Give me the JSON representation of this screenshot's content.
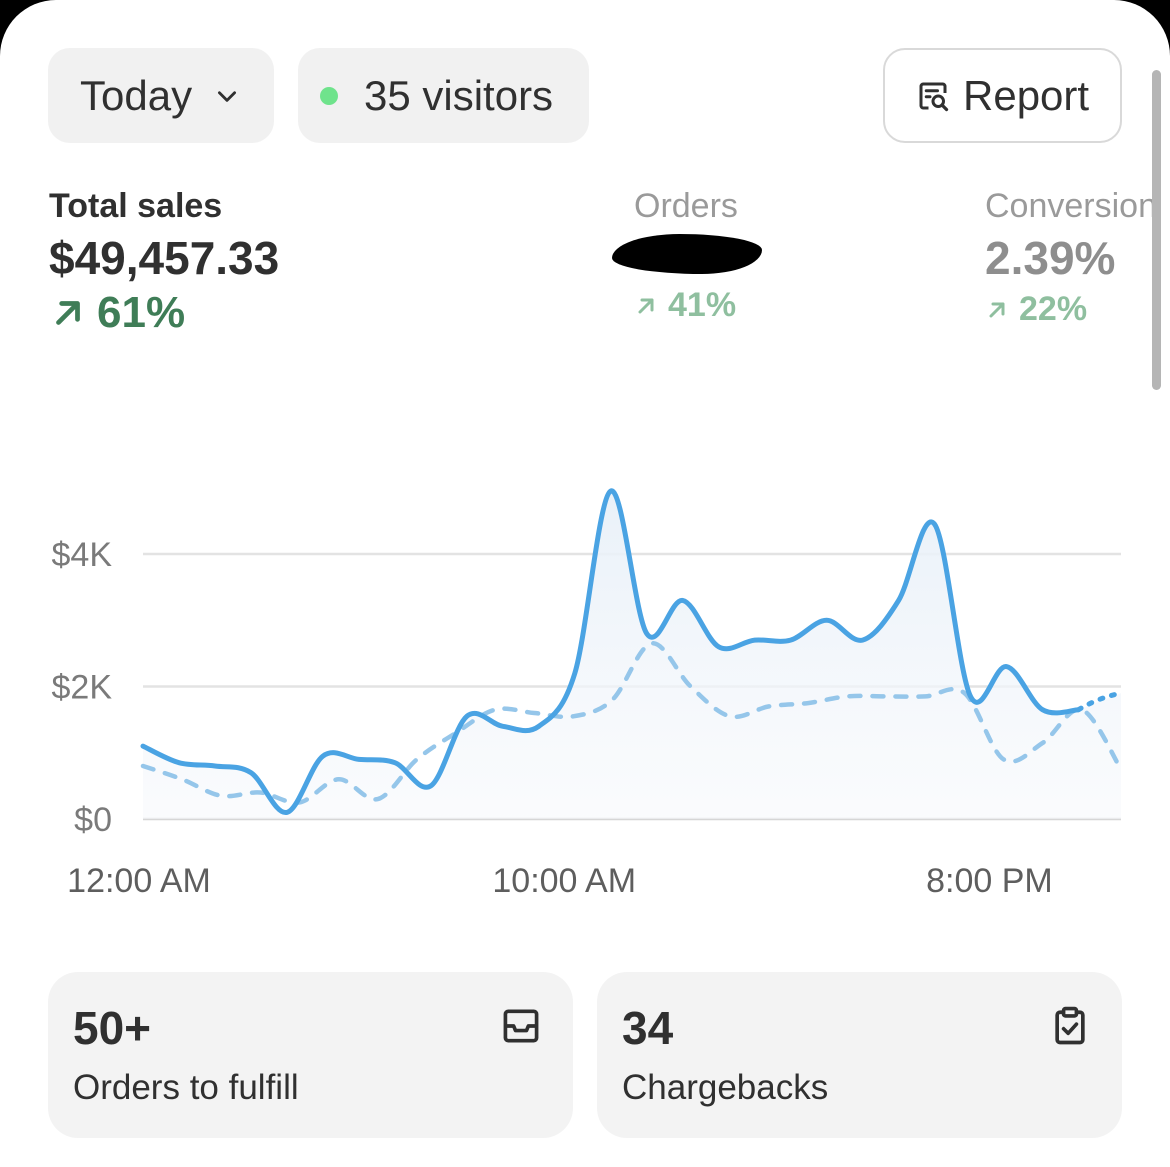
{
  "header": {
    "date_range": "Today",
    "visitors": "35 visitors",
    "report_label": "Report"
  },
  "metrics": {
    "total_sales": {
      "label": "Total sales",
      "value": "$49,457.33",
      "change": "61%"
    },
    "orders": {
      "label": "Orders",
      "change": "41%"
    },
    "conversion": {
      "label": "Conversion",
      "value": "2.39%",
      "change": "22%"
    }
  },
  "chart_data": {
    "type": "line",
    "y_ticks": [
      "$4K",
      "$2K",
      "$0"
    ],
    "x_ticks": [
      "12:00 AM",
      "10:00 AM",
      "8:00 PM"
    ],
    "ylim": [
      0,
      4000
    ],
    "x_hours": [
      0,
      0.5,
      1,
      1.5,
      2,
      2.5,
      3,
      3.5,
      4,
      4.5,
      5,
      5.5,
      6,
      6.5,
      7,
      7.5,
      8,
      8.5,
      9,
      9.5,
      10,
      10.5,
      11,
      11.5,
      12,
      12.5,
      13,
      13.5,
      14,
      14.5,
      15,
      15.5,
      16,
      16.5,
      17,
      17.5,
      18,
      18.5,
      19,
      19.5,
      20,
      20.5,
      21,
      21.5,
      22,
      22.5,
      23
    ],
    "series": [
      {
        "style": "solid",
        "values": [
          1100,
          850,
          800,
          700,
          100,
          950,
          900,
          850,
          500,
          1550,
          1400,
          1400,
          2200,
          4950,
          2800,
          3300,
          2600,
          2700,
          2700,
          3000,
          2700,
          3300,
          4450,
          1850,
          2300,
          1650,
          1650
        ]
      },
      {
        "style": "dashed",
        "values": [
          800,
          600,
          350,
          400,
          250,
          600,
          300,
          900,
          1300,
          1650,
          1600,
          1550,
          1800,
          2650,
          2000,
          1550,
          1700,
          1750,
          1850,
          1850,
          1850,
          1900,
          900,
          1150,
          1650,
          750
        ]
      }
    ],
    "colors": {
      "primary": "#4aa3e3",
      "comparison": "#95c6ea",
      "grid": "#e3e3e3"
    }
  },
  "tiles": [
    {
      "value": "50+",
      "label": "Orders to fulfill",
      "icon": "inbox-icon"
    },
    {
      "value": "34",
      "label": "Chargebacks",
      "icon": "clipboard-check-icon"
    }
  ]
}
